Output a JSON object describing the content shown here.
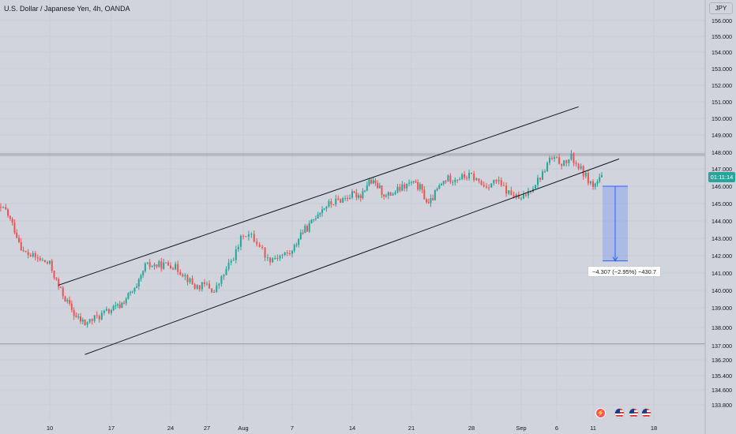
{
  "header": {
    "symbol_title": "U.S. Dollar / Japanese Yen, 4h, OANDA",
    "currency_label": "JPY",
    "price_tag": "01:11:14",
    "measure_label": "−4.307 (−2.95%) −430.7"
  },
  "colors": {
    "background": "#d1d4dc",
    "up_candle": "#26a69a",
    "down_candle": "#ef5350",
    "trend_line": "#131722",
    "measure_fill": "#2962ff",
    "axis_text": "#131722"
  },
  "icons": [
    "lightning-icon",
    "us-flag-icon",
    "us-flag-icon",
    "us-flag-icon"
  ],
  "chart_data": {
    "type": "candlestick",
    "title": "U.S. Dollar / Japanese Yen, 4h, OANDA",
    "xlabel": "",
    "ylabel": "JPY",
    "ylim": [
      133.4,
      156.5
    ],
    "grid": true,
    "y_ticks": [
      "156.000",
      "155.000",
      "154.000",
      "153.000",
      "152.000",
      "151.000",
      "150.000",
      "149.000",
      "148.000",
      "147.000",
      "146.000",
      "145.000",
      "144.000",
      "143.000",
      "142.000",
      "141.000",
      "140.000",
      "139.000",
      "138.000",
      "137.000",
      "136.200",
      "135.400",
      "134.600",
      "133.800"
    ],
    "y_tick_values": [
      156,
      155,
      154,
      153,
      152,
      151,
      150,
      149,
      148,
      147,
      146,
      145,
      144,
      143,
      142,
      141,
      140,
      139,
      138,
      137,
      136.2,
      135.4,
      134.6,
      133.8
    ],
    "x_ticks": [
      "10",
      "17",
      "24",
      "27",
      "Aug",
      "7",
      "14",
      "21",
      "28",
      "Sep",
      "6",
      "11",
      "18"
    ],
    "x_tick_values": [
      "2023-07-10",
      "2023-07-17",
      "2023-07-24",
      "2023-07-27",
      "2023-08-01",
      "2023-08-07",
      "2023-08-14",
      "2023-08-21",
      "2023-08-28",
      "2023-09-01",
      "2023-09-06",
      "2023-09-11",
      "2023-09-18"
    ],
    "horizontal_levels": [
      147.9,
      137.1
    ],
    "channel_upper": {
      "start": [
        "2023-07-11",
        140.3
      ],
      "end": [
        "2023-09-09",
        150.7
      ]
    },
    "channel_lower": {
      "start": [
        "2023-07-14",
        136.5
      ],
      "end": [
        "2023-09-14",
        147.6
      ]
    },
    "measure": {
      "x_start": "2023-09-11",
      "x_end": "2023-09-13",
      "from": 146.0,
      "to": 141.7,
      "change": -4.307,
      "percent": -2.95,
      "pips": -430.7
    },
    "anchors": [
      [
        "2023-07-03",
        144.8
      ],
      [
        "2023-07-05",
        144.6
      ],
      [
        "2023-07-06",
        143.5
      ],
      [
        "2023-07-07",
        142.2
      ],
      [
        "2023-07-10",
        141.5
      ],
      [
        "2023-07-11",
        140.2
      ],
      [
        "2023-07-12",
        139.3
      ],
      [
        "2023-07-13",
        138.5
      ],
      [
        "2023-07-14",
        138.2
      ],
      [
        "2023-07-17",
        138.9
      ],
      [
        "2023-07-18",
        139.1
      ],
      [
        "2023-07-19",
        139.7
      ],
      [
        "2023-07-20",
        140.1
      ],
      [
        "2023-07-21",
        141.4
      ],
      [
        "2023-07-24",
        141.5
      ],
      [
        "2023-07-25",
        141.0
      ],
      [
        "2023-07-26",
        140.2
      ],
      [
        "2023-07-27",
        140.3
      ],
      [
        "2023-07-28",
        139.9
      ],
      [
        "2023-07-31",
        142.2
      ],
      [
        "2023-08-01",
        143.3
      ],
      [
        "2023-08-02",
        143.1
      ],
      [
        "2023-08-03",
        142.6
      ],
      [
        "2023-08-04",
        141.8
      ],
      [
        "2023-08-07",
        142.2
      ],
      [
        "2023-08-08",
        143.3
      ],
      [
        "2023-08-09",
        143.7
      ],
      [
        "2023-08-10",
        144.5
      ],
      [
        "2023-08-11",
        144.9
      ],
      [
        "2023-08-14",
        145.5
      ],
      [
        "2023-08-15",
        145.5
      ],
      [
        "2023-08-16",
        146.3
      ],
      [
        "2023-08-17",
        146.0
      ],
      [
        "2023-08-18",
        145.4
      ],
      [
        "2023-08-21",
        146.2
      ],
      [
        "2023-08-22",
        145.9
      ],
      [
        "2023-08-23",
        144.9
      ],
      [
        "2023-08-24",
        145.8
      ],
      [
        "2023-08-25",
        146.4
      ],
      [
        "2023-08-28",
        146.6
      ],
      [
        "2023-08-29",
        146.0
      ],
      [
        "2023-08-30",
        146.3
      ],
      [
        "2023-08-31",
        145.6
      ],
      [
        "2023-09-01",
        145.2
      ],
      [
        "2023-09-04",
        146.7
      ],
      [
        "2023-09-05",
        147.6
      ],
      [
        "2023-09-06",
        147.5
      ],
      [
        "2023-09-07",
        147.3
      ],
      [
        "2023-09-08",
        147.7
      ],
      [
        "2023-09-11",
        146.0
      ],
      [
        "2023-09-12",
        146.5
      ]
    ]
  }
}
